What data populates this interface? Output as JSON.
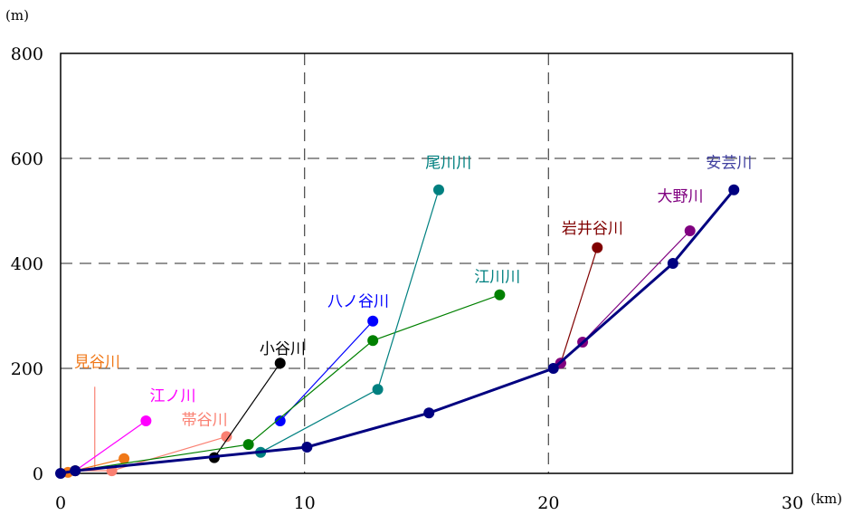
{
  "chart_data": {
    "type": "line",
    "x_unit": "(km)",
    "y_unit": "(m)",
    "xlim": [
      0,
      30
    ],
    "ylim": [
      0,
      800
    ],
    "xticks": [
      0,
      10,
      20,
      30
    ],
    "yticks": [
      0,
      200,
      400,
      600,
      800
    ],
    "grid": "dashed",
    "series": [
      {
        "name": "安芸川",
        "color": "#000080",
        "width": 3,
        "points": [
          [
            0,
            0
          ],
          [
            0.6,
            5
          ],
          [
            10.1,
            50
          ],
          [
            15.1,
            115
          ],
          [
            20.2,
            200
          ],
          [
            25.1,
            400
          ],
          [
            27.6,
            540
          ]
        ]
      },
      {
        "name": "見谷川",
        "color": "#F07818",
        "width": 1.2,
        "points": [
          [
            0.3,
            2
          ],
          [
            2.6,
            28
          ]
        ]
      },
      {
        "name": "江ノ川",
        "color": "#FF00FF",
        "width": 1.2,
        "points": [
          [
            0.6,
            5
          ],
          [
            3.5,
            100
          ]
        ]
      },
      {
        "name": "帯谷川",
        "color": "#FA8072",
        "width": 1.2,
        "points": [
          [
            0.6,
            5
          ],
          [
            2.1,
            5
          ],
          [
            6.8,
            70
          ]
        ]
      },
      {
        "name": "小谷川",
        "color": "#000000",
        "width": 1.2,
        "points": [
          [
            6.3,
            30
          ],
          [
            9.0,
            210
          ]
        ]
      },
      {
        "name": "八ノ谷川",
        "color": "#0000FF",
        "width": 1.2,
        "points": [
          [
            9.0,
            100
          ],
          [
            12.8,
            290
          ]
        ]
      },
      {
        "name": "江川川",
        "color": "#008000",
        "width": 1.2,
        "points": [
          [
            0.6,
            5
          ],
          [
            7.7,
            55
          ],
          [
            12.8,
            253
          ],
          [
            18.0,
            340
          ]
        ]
      },
      {
        "name": "尾川川",
        "color": "#008080",
        "width": 1.2,
        "points": [
          [
            8.2,
            40
          ],
          [
            13.0,
            160
          ],
          [
            15.5,
            540
          ]
        ]
      },
      {
        "name": "岩井谷川",
        "color": "#800000",
        "width": 1.2,
        "points": [
          [
            20.5,
            210
          ],
          [
            22.0,
            430
          ]
        ]
      },
      {
        "name": "大野川",
        "color": "#800080",
        "width": 1.2,
        "points": [
          [
            20.5,
            210
          ],
          [
            21.4,
            250
          ],
          [
            25.8,
            462
          ]
        ]
      }
    ],
    "labels": [
      {
        "text": "見谷川",
        "color": "#F07818",
        "x": 1.5,
        "y": 203
      },
      {
        "text": "江ノ川",
        "color": "#FF00FF",
        "x": 4.6,
        "y": 138
      },
      {
        "text": "帯谷川",
        "color": "#FA8072",
        "x": 5.9,
        "y": 92
      },
      {
        "text": "小谷川",
        "color": "#000000",
        "x": 9.1,
        "y": 228
      },
      {
        "text": "八ノ谷川",
        "color": "#0000FF",
        "x": 12.2,
        "y": 318
      },
      {
        "text": "江川川",
        "color": "#008080",
        "x": 17.9,
        "y": 365
      },
      {
        "text": "尾川川",
        "color": "#008080",
        "x": 15.9,
        "y": 582
      },
      {
        "text": "岩井谷川",
        "color": "#800000",
        "x": 21.8,
        "y": 457
      },
      {
        "text": "大野川",
        "color": "#800080",
        "x": 25.4,
        "y": 518
      },
      {
        "text": "安芸川",
        "color": "#4040A0",
        "x": 27.4,
        "y": 582
      }
    ],
    "marker_line": {
      "x": 1.4,
      "y_from": 10,
      "y_to": 165,
      "color": "#FA8072"
    }
  }
}
